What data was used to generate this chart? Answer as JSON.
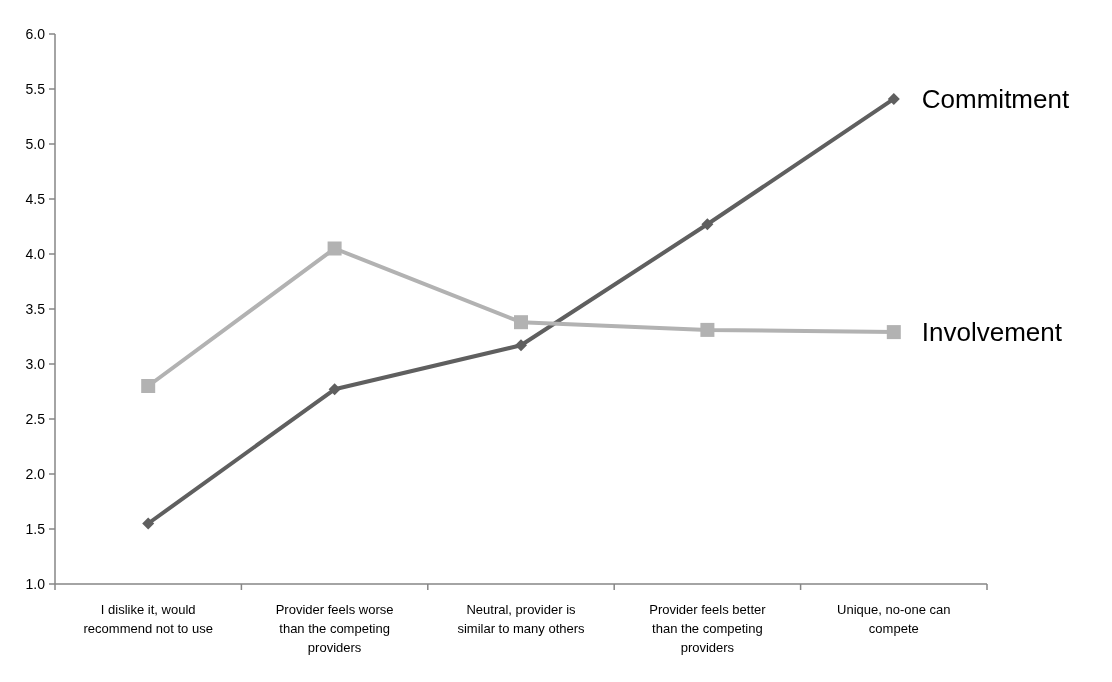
{
  "chart_data": {
    "type": "line",
    "categories": [
      "I dislike it, would recommend not to use",
      "Provider feels worse than the competing providers",
      "Neutral, provider is similar to many others",
      "Provider feels better than the competing providers",
      "Unique, no-one can compete"
    ],
    "series": [
      {
        "name": "Commitment",
        "color": "#5f5f5f",
        "marker": "diamond",
        "values": [
          1.55,
          2.77,
          3.17,
          4.27,
          5.41
        ]
      },
      {
        "name": "Involvement",
        "color": "#b2b2b2",
        "marker": "square",
        "values": [
          2.8,
          4.05,
          3.38,
          3.31,
          3.29
        ]
      }
    ],
    "ylim": [
      1,
      6
    ],
    "yticks": [
      {
        "value": 1,
        "label": "1.0"
      },
      {
        "value": 1.5,
        "label": "1.5"
      },
      {
        "value": 2,
        "label": "2.0"
      },
      {
        "value": 2.5,
        "label": "2.5"
      },
      {
        "value": 3,
        "label": "3.0"
      },
      {
        "value": 3.5,
        "label": "3.5"
      },
      {
        "value": 4,
        "label": "4.0"
      },
      {
        "value": 4.5,
        "label": "4.5"
      },
      {
        "value": 5,
        "label": "5.0"
      },
      {
        "value": 5.5,
        "label": "5.5"
      },
      {
        "value": 6,
        "label": "6.0"
      }
    ],
    "grid": false,
    "legend": false,
    "line_style": "solid"
  }
}
